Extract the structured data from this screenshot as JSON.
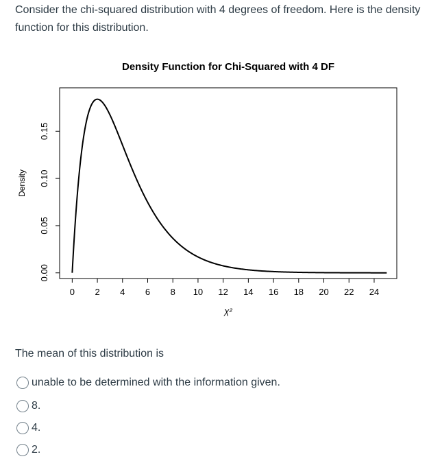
{
  "question": {
    "text": "Consider the chi-squared distribution with 4 degrees of freedom. Here is the density function for this distribution."
  },
  "chart_data": {
    "type": "line",
    "title": "Density Function for Chi-Squared with 4 DF",
    "xlabel": "χ²",
    "ylabel": "Density",
    "df": 4,
    "x_range": [
      0,
      25
    ],
    "xlim": [
      -1,
      25.8
    ],
    "ylim": [
      -0.006,
      0.196
    ],
    "xticks": [
      0,
      2,
      4,
      6,
      8,
      10,
      12,
      14,
      16,
      18,
      20,
      22,
      24
    ],
    "yticks": [
      0.0,
      0.05,
      0.1,
      0.15
    ],
    "ytick_labels": [
      "0.00",
      "0.05",
      "0.10",
      "0.15"
    ],
    "grid": false,
    "legend": "none",
    "line_color": "#000000"
  },
  "prompt": {
    "text": "The mean of this distribution is"
  },
  "options": [
    {
      "label": "unable to be determined with the information given."
    },
    {
      "label": "8."
    },
    {
      "label": "4."
    },
    {
      "label": "2."
    }
  ]
}
